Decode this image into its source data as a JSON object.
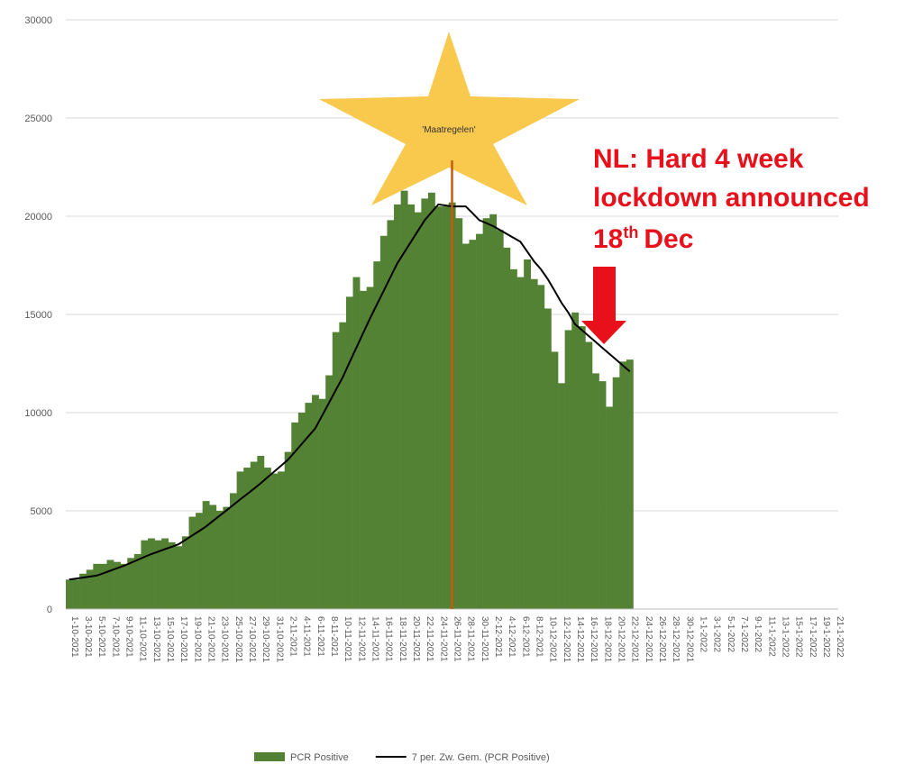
{
  "chart_data": {
    "type": "bar",
    "categories": [
      "1-10-2021",
      null,
      "3-10-2021",
      null,
      "5-10-2021",
      null,
      "7-10-2021",
      null,
      "9-10-2021",
      null,
      "11-10-2021",
      null,
      "13-10-2021",
      null,
      "15-10-2021",
      null,
      "17-10-2021",
      null,
      "19-10-2021",
      null,
      "21-10-2021",
      null,
      "23-10-2021",
      null,
      "25-10-2021",
      null,
      "27-10-2021",
      null,
      "29-10-2021",
      null,
      "31-10-2021",
      null,
      "2-11-2021",
      null,
      "4-11-2021",
      null,
      "6-11-2021",
      null,
      "8-11-2021",
      null,
      "10-11-2021",
      null,
      "12-11-2021",
      null,
      "14-11-2021",
      null,
      "16-11-2021",
      null,
      "18-11-2021",
      null,
      "20-11-2021",
      null,
      "22-11-2021",
      null,
      "24-11-2021",
      null,
      "26-11-2021",
      null,
      "28-11-2021",
      null,
      "30-11-2021",
      null,
      "2-12-2021",
      null,
      "4-12-2021",
      null,
      "6-12-2021",
      null,
      "8-12-2021",
      null,
      "10-12-2021",
      null,
      "12-12-2021",
      null,
      "14-12-2021",
      null,
      "16-12-2021",
      null,
      "18-12-2021",
      null,
      "20-12-2021",
      null,
      "22-12-2021",
      null,
      "24-12-2021",
      null,
      "26-12-2021",
      null,
      "28-12-2021",
      null,
      "30-12-2021",
      null,
      "1-1-2022",
      null,
      "3-1-2022",
      null,
      "5-1-2022",
      null,
      "7-1-2022",
      null,
      "9-1-2022",
      null,
      "11-1-2022",
      null,
      "13-1-2022",
      null,
      "15-1-2022",
      null,
      "17-1-2022",
      null,
      "19-1-2022",
      null,
      "21-1-2022"
    ],
    "series": [
      {
        "name": "PCR Positive",
        "type": "bar",
        "color": "#548235",
        "values": [
          1500,
          1500,
          1800,
          2000,
          2300,
          2300,
          2500,
          2400,
          2300,
          2600,
          2800,
          3500,
          3600,
          3500,
          3600,
          3400,
          3200,
          3700,
          4700,
          4900,
          5500,
          5300,
          5000,
          5200,
          5900,
          7000,
          7200,
          7500,
          7800,
          7200,
          6900,
          7000,
          8000,
          9500,
          10000,
          10500,
          10900,
          10700,
          11900,
          14100,
          14600,
          15900,
          16900,
          16200,
          16400,
          17700,
          19000,
          19800,
          20600,
          21300,
          20600,
          20200,
          20900,
          21200,
          20500,
          20500,
          20700,
          19900,
          18600,
          18800,
          19100,
          19900,
          20100,
          19300,
          18400,
          17300,
          16900,
          17800,
          16800,
          16500,
          15300,
          13100,
          11500,
          14200,
          15100,
          14400,
          13600,
          12000,
          11600,
          10300,
          11800,
          12600,
          12700,
          null,
          null,
          null,
          null,
          null,
          null,
          null,
          null,
          null,
          null,
          null,
          null,
          null,
          null,
          null,
          null,
          null,
          null,
          null,
          null,
          null,
          null,
          null,
          null,
          null,
          null,
          null,
          null,
          null,
          null
        ]
      },
      {
        "name": "7 per. Zw. Gem. (PCR Positive)",
        "type": "line",
        "color": "#000000",
        "values": [
          1500,
          1550,
          1600,
          1650,
          1700,
          1820,
          1950,
          2080,
          2200,
          2350,
          2500,
          2650,
          2800,
          2920,
          3050,
          3170,
          3300,
          3520,
          3750,
          3970,
          4200,
          4480,
          4750,
          5020,
          5300,
          5580,
          5850,
          6120,
          6400,
          6700,
          7000,
          7300,
          7600,
          8000,
          8400,
          8800,
          9200,
          9850,
          10500,
          11150,
          11800,
          12550,
          13300,
          14050,
          14800,
          15500,
          16200,
          16900,
          17600,
          18150,
          18700,
          19250,
          19800,
          20200,
          20600,
          20550,
          20500,
          20500,
          20500,
          20150,
          19800,
          19650,
          19500,
          19300,
          19100,
          18900,
          18700,
          18200,
          17700,
          17300,
          16800,
          16200,
          15600,
          15100,
          14500,
          14200,
          13900,
          13600,
          13300,
          13000,
          12700,
          12400,
          12100,
          null,
          null,
          null,
          null,
          null,
          null,
          null,
          null,
          null,
          null,
          null,
          null,
          null,
          null,
          null,
          null,
          null,
          null,
          null,
          null,
          null,
          null,
          null,
          null,
          null,
          null,
          null,
          null,
          null,
          null
        ]
      }
    ],
    "ylim": [
      0,
      30000
    ],
    "yticks": [
      0,
      5000,
      10000,
      15000,
      20000,
      25000,
      30000
    ],
    "grid": true,
    "legend": "bottom",
    "marker": {
      "label": "'Maatregelen'",
      "category": "26-11-2021",
      "color": "#c55a11"
    },
    "annotation": {
      "lines": [
        "NL: Hard 4 week",
        "lockdown announced"
      ],
      "day": "18",
      "suffix": "th",
      "month": "Dec",
      "color": "#e8101a"
    }
  }
}
